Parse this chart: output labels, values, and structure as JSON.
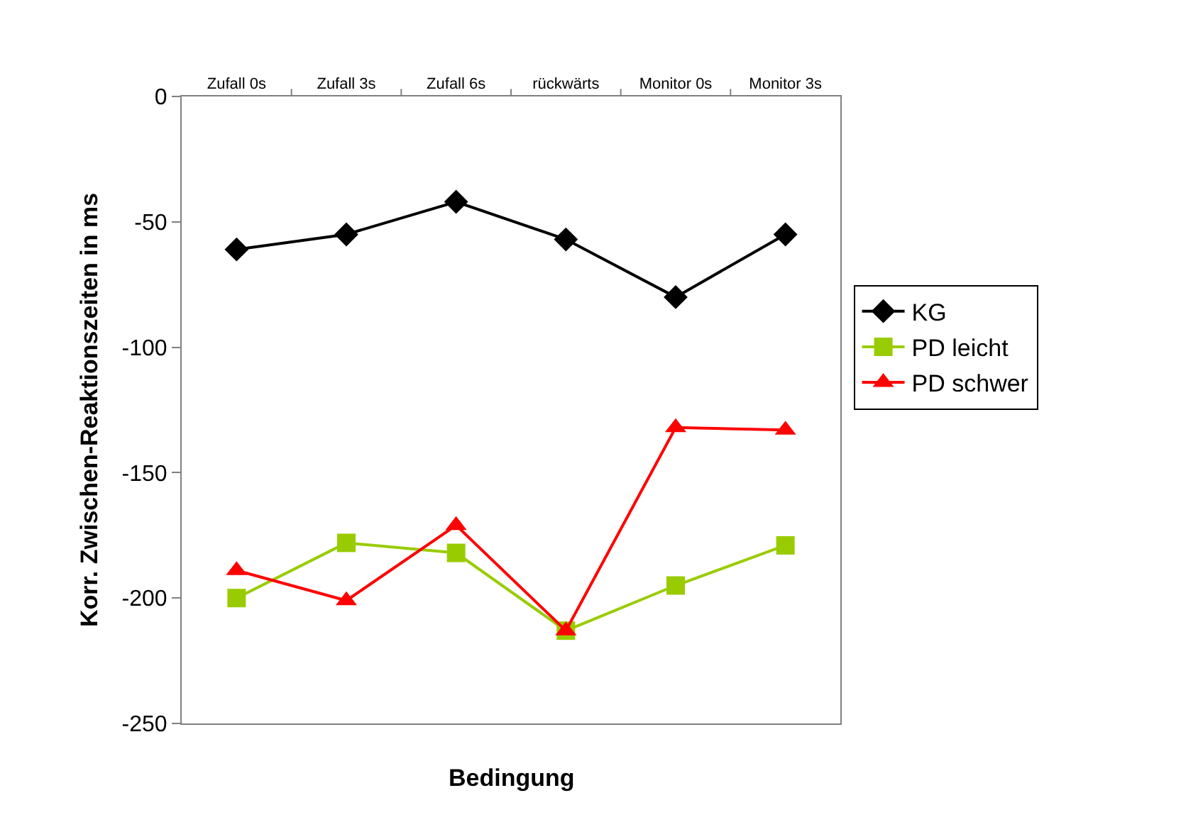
{
  "chart_data": {
    "type": "line",
    "xlabel": "Bedingung",
    "ylabel": "Korr. Zwischen-Reaktionszeiten in ms",
    "categories": [
      "Zufall 0s",
      "Zufall 3s",
      "Zufall 6s",
      "rückwärts",
      "Monitor 0s",
      "Monitor 3s"
    ],
    "series": [
      {
        "name": "KG",
        "color": "#000000",
        "marker": "diamond",
        "values": [
          -61,
          -55,
          -42,
          -57,
          -80,
          -55
        ]
      },
      {
        "name": "PD leicht",
        "color": "#99cc00",
        "marker": "square",
        "values": [
          -200,
          -178,
          -182,
          -213,
          -195,
          -179
        ]
      },
      {
        "name": "PD schwer",
        "color": "#ff0000",
        "marker": "triangle",
        "values": [
          -189,
          -201,
          -171,
          -213,
          -132,
          -133
        ]
      }
    ],
    "ylim": [
      -250,
      0
    ],
    "yticks": [
      -250,
      -200,
      -150,
      -100,
      -50,
      0
    ],
    "legend": "right",
    "line_style": "solid"
  }
}
